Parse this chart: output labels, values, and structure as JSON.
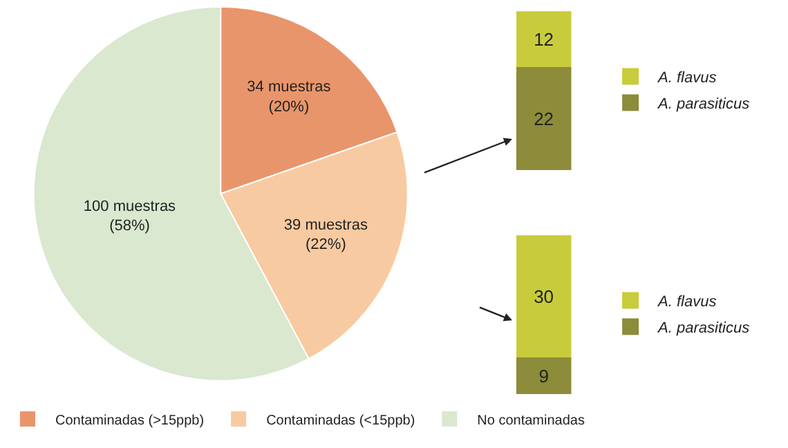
{
  "chart_data": [
    {
      "type": "pie",
      "categories": [
        "Contaminadas (>15ppb)",
        "Contaminadas (<15ppb)",
        "No contaminadas"
      ],
      "values": [
        34,
        39,
        100
      ],
      "colors": [
        "#e9956b",
        "#f8caa1",
        "#d9e8cf"
      ],
      "value_labels": [
        "34 muestras\n(20%)",
        "39 muestras\n(22%)",
        "100 muestras\n(58%)"
      ],
      "legend": "bottom"
    },
    {
      "type": "bar",
      "stacked": true,
      "categories": [
        null
      ],
      "series": [
        {
          "name": "A. parasiticus",
          "color": "#8c8c3a",
          "values": [
            22
          ]
        },
        {
          "name": "A. flavus",
          "color": "#c8cc3c",
          "values": [
            12
          ]
        }
      ],
      "data_labels": true,
      "legend": "right",
      "tick_labels": false
    },
    {
      "type": "bar",
      "stacked": true,
      "categories": [
        null
      ],
      "series": [
        {
          "name": "A. parasiticus",
          "color": "#8c8c3a",
          "values": [
            9
          ]
        },
        {
          "name": "A. flavus",
          "color": "#c8cc3c",
          "values": [
            30
          ]
        }
      ],
      "data_labels": true,
      "legend": "right",
      "tick_labels": false
    }
  ]
}
